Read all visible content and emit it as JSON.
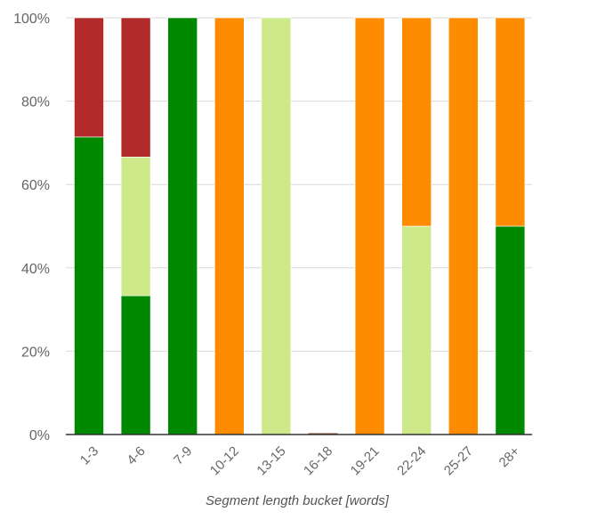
{
  "chart_data": {
    "type": "bar",
    "stacked": true,
    "normalized": true,
    "xlabel": "Segment length bucket [words]",
    "ylabel": "",
    "ylim": [
      0,
      100
    ],
    "yticks": [
      "0%",
      "20%",
      "40%",
      "60%",
      "80%",
      "100%"
    ],
    "grid": true,
    "categories": [
      "1-3",
      "4-6",
      "7-9",
      "10-12",
      "13-15",
      "16-18",
      "19-21",
      "22-24",
      "25-27",
      "28+"
    ],
    "series": [
      {
        "color": "#008800",
        "values": [
          71.4,
          33.3,
          100,
          0,
          0,
          0,
          0,
          0,
          0,
          50
        ]
      },
      {
        "color": "#cde98a",
        "values": [
          0,
          33.3,
          0,
          0,
          100,
          0,
          0,
          50,
          0,
          0
        ]
      },
      {
        "color": "#ff8c00",
        "values": [
          0,
          0,
          0,
          100,
          0,
          0,
          100,
          50,
          100,
          50
        ]
      },
      {
        "color": "#b22a2a",
        "values": [
          28.6,
          33.4,
          0,
          0,
          0,
          0,
          0,
          0,
          0,
          0
        ]
      }
    ]
  }
}
